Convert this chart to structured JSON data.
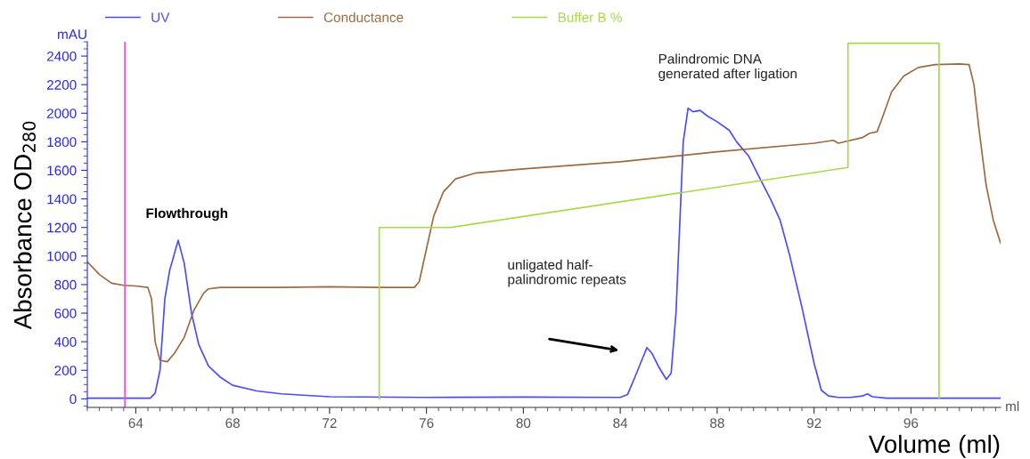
{
  "chart_data": {
    "type": "line",
    "xlabel": "Volume (ml)",
    "ylabel": "Absorbance OD$_{280}$",
    "annotations": [
      "Flowthrough",
      "unligated half-\npalindromic repeats",
      "Palindromic DNA\ngenerated after ligation",
      "mAU",
      "ml"
    ],
    "xlim": [
      62,
      99.7
    ],
    "xticks": [
      64,
      68,
      72,
      76,
      80,
      84,
      88,
      92,
      96
    ],
    "ylim": [
      -60,
      2500
    ],
    "yticks": [
      0,
      200,
      400,
      600,
      800,
      1000,
      1200,
      1400,
      1600,
      1800,
      2000,
      2200,
      2400
    ],
    "grid": false,
    "legend": "top",
    "ref_lines": [
      {
        "axis": "x",
        "value": 63.55,
        "color": "#ff44dd"
      }
    ],
    "series": [
      {
        "name": "UV",
        "color": "#4a4aff",
        "x": [
          62,
          64.6,
          64.8,
          65.0,
          65.2,
          65.4,
          65.75,
          66.0,
          66.3,
          66.6,
          67,
          67.5,
          68,
          69,
          70,
          72,
          76,
          80,
          84,
          84.3,
          84.6,
          85.1,
          85.3,
          85.6,
          85.9,
          86.1,
          86.3,
          86.45,
          86.6,
          86.8,
          87.0,
          87.3,
          87.6,
          88,
          88.5,
          88.8,
          89.3,
          89.8,
          90.2,
          90.6,
          91,
          91.5,
          92,
          92.3,
          92.6,
          93,
          93.5,
          94,
          94.2,
          94.4,
          95,
          99.7
        ],
        "values": [
          5,
          5,
          40,
          200,
          700,
          900,
          1110,
          950,
          600,
          380,
          230,
          150,
          95,
          55,
          35,
          15,
          10,
          12,
          10,
          30,
          150,
          359,
          320,
          220,
          136,
          180,
          600,
          1200,
          1800,
          2035,
          2010,
          2020,
          1980,
          1940,
          1880,
          1800,
          1700,
          1530,
          1400,
          1250,
          1000,
          640,
          250,
          60,
          20,
          10,
          10,
          20,
          35,
          15,
          5,
          5
        ]
      },
      {
        "name": "Conductance",
        "color": "#9b6a40",
        "x": [
          62,
          62.5,
          63,
          63.5,
          64,
          64.5,
          64.65,
          64.8,
          65.0,
          65.3,
          65.6,
          66,
          66.4,
          66.8,
          67,
          67.5,
          70,
          72,
          74,
          75.5,
          75.7,
          76,
          76.3,
          76.7,
          77.2,
          78,
          80,
          84,
          88,
          92,
          92.8,
          93.0,
          94,
          94.3,
          94.6,
          94.8,
          95.2,
          95.7,
          96.3,
          97,
          98,
          98.4,
          98.6,
          98.8,
          99.1,
          99.4,
          99.7
        ],
        "values": [
          960,
          870,
          810,
          795,
          790,
          780,
          700,
          400,
          270,
          260,
          320,
          430,
          620,
          740,
          770,
          780,
          780,
          785,
          780,
          780,
          820,
          1050,
          1280,
          1450,
          1540,
          1580,
          1610,
          1660,
          1730,
          1790,
          1810,
          1790,
          1830,
          1860,
          1870,
          1960,
          2150,
          2260,
          2320,
          2340,
          2345,
          2340,
          2200,
          1900,
          1500,
          1250,
          1090
        ]
      },
      {
        "name": "Buffer B %",
        "color": "#a8d84a",
        "x": [
          74.05,
          74.05,
          77,
          93.4,
          93.4,
          97.16,
          97.16
        ],
        "values": [
          0,
          1200,
          1200,
          1620,
          2490,
          2490,
          0
        ]
      }
    ]
  }
}
